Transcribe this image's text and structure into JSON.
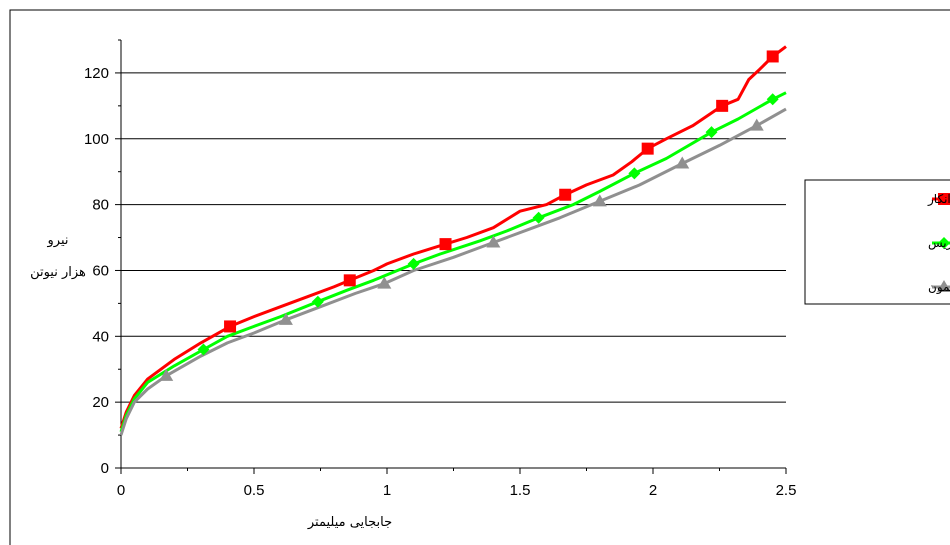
{
  "chart_data": {
    "type": "line",
    "title": "",
    "xlabel": "جابجایی میلیمتر",
    "ylabel_lines": [
      "نیرو",
      "هزار نیوتن"
    ],
    "xlim": [
      0,
      2.5
    ],
    "ylim": [
      0,
      130
    ],
    "x_ticks": [
      0,
      0.5,
      1,
      1.5,
      2,
      2.5
    ],
    "x_tick_labels": [
      "0",
      "0.5",
      "1",
      "1.5",
      "2",
      "2.5"
    ],
    "y_ticks": [
      0,
      20,
      40,
      60,
      80,
      100,
      120
    ],
    "y_tick_labels": [
      "0",
      "20",
      "40",
      "60",
      "80",
      "100",
      "120"
    ],
    "grid": "horizontal",
    "legend_position": "right",
    "series": [
      {
        "name": "بدون روانکار",
        "color": "#ff0000",
        "marker": "square",
        "x": [
          0,
          0.02,
          0.05,
          0.1,
          0.2,
          0.3,
          0.41,
          0.5,
          0.6,
          0.7,
          0.8,
          0.86,
          0.95,
          1.0,
          1.1,
          1.22,
          1.3,
          1.4,
          1.5,
          1.6,
          1.67,
          1.75,
          1.85,
          1.92,
          1.98,
          2.05,
          2.15,
          2.26,
          2.32,
          2.36,
          2.4,
          2.45,
          2.5
        ],
        "y": [
          12,
          17,
          22,
          27,
          33,
          38,
          43,
          46,
          49,
          52,
          55,
          57,
          60,
          62,
          65,
          68,
          70,
          73,
          78,
          80,
          83,
          86,
          89,
          93,
          97,
          100,
          104,
          110,
          112,
          118,
          121,
          125,
          128
        ],
        "marker_x": [
          0.41,
          0.86,
          1.22,
          1.67,
          1.98,
          2.26,
          2.45
        ],
        "marker_y": [
          43,
          57,
          68,
          83,
          97,
          110,
          125
        ]
      },
      {
        "name": "روانکار گریس",
        "color": "#00ff00",
        "marker": "diamond",
        "x": [
          0,
          0.02,
          0.05,
          0.1,
          0.2,
          0.31,
          0.4,
          0.5,
          0.6,
          0.74,
          0.85,
          0.95,
          1.1,
          1.2,
          1.35,
          1.45,
          1.57,
          1.7,
          1.8,
          1.93,
          2.05,
          2.22,
          2.32,
          2.45,
          2.5
        ],
        "y": [
          11,
          16,
          21,
          26,
          31,
          36,
          40,
          43,
          46,
          50.5,
          54,
          57,
          62,
          65,
          69,
          72,
          76,
          80,
          84,
          89.5,
          94,
          102,
          106,
          112,
          114
        ],
        "marker_x": [
          0.31,
          0.74,
          1.1,
          1.57,
          1.93,
          2.22,
          2.45
        ],
        "marker_y": [
          36,
          50.5,
          62,
          76,
          89.5,
          102,
          112
        ]
      },
      {
        "name": "روانکار اکسید آنتیمون",
        "color": "#909090",
        "marker": "triangle",
        "x": [
          0,
          0.02,
          0.05,
          0.1,
          0.17,
          0.3,
          0.4,
          0.5,
          0.62,
          0.75,
          0.88,
          0.99,
          1.1,
          1.25,
          1.4,
          1.55,
          1.65,
          1.8,
          1.95,
          2.11,
          2.25,
          2.39,
          2.5
        ],
        "y": [
          10,
          15,
          20,
          24,
          28,
          34,
          38,
          41,
          45,
          49,
          53,
          56,
          60,
          64,
          68.5,
          73,
          76,
          81,
          86,
          92.5,
          98,
          104,
          109
        ],
        "marker_x": [
          0.17,
          0.62,
          0.99,
          1.4,
          1.8,
          2.11,
          2.39
        ],
        "marker_y": [
          28,
          45,
          56,
          68.5,
          81,
          92.5,
          104
        ]
      }
    ]
  }
}
